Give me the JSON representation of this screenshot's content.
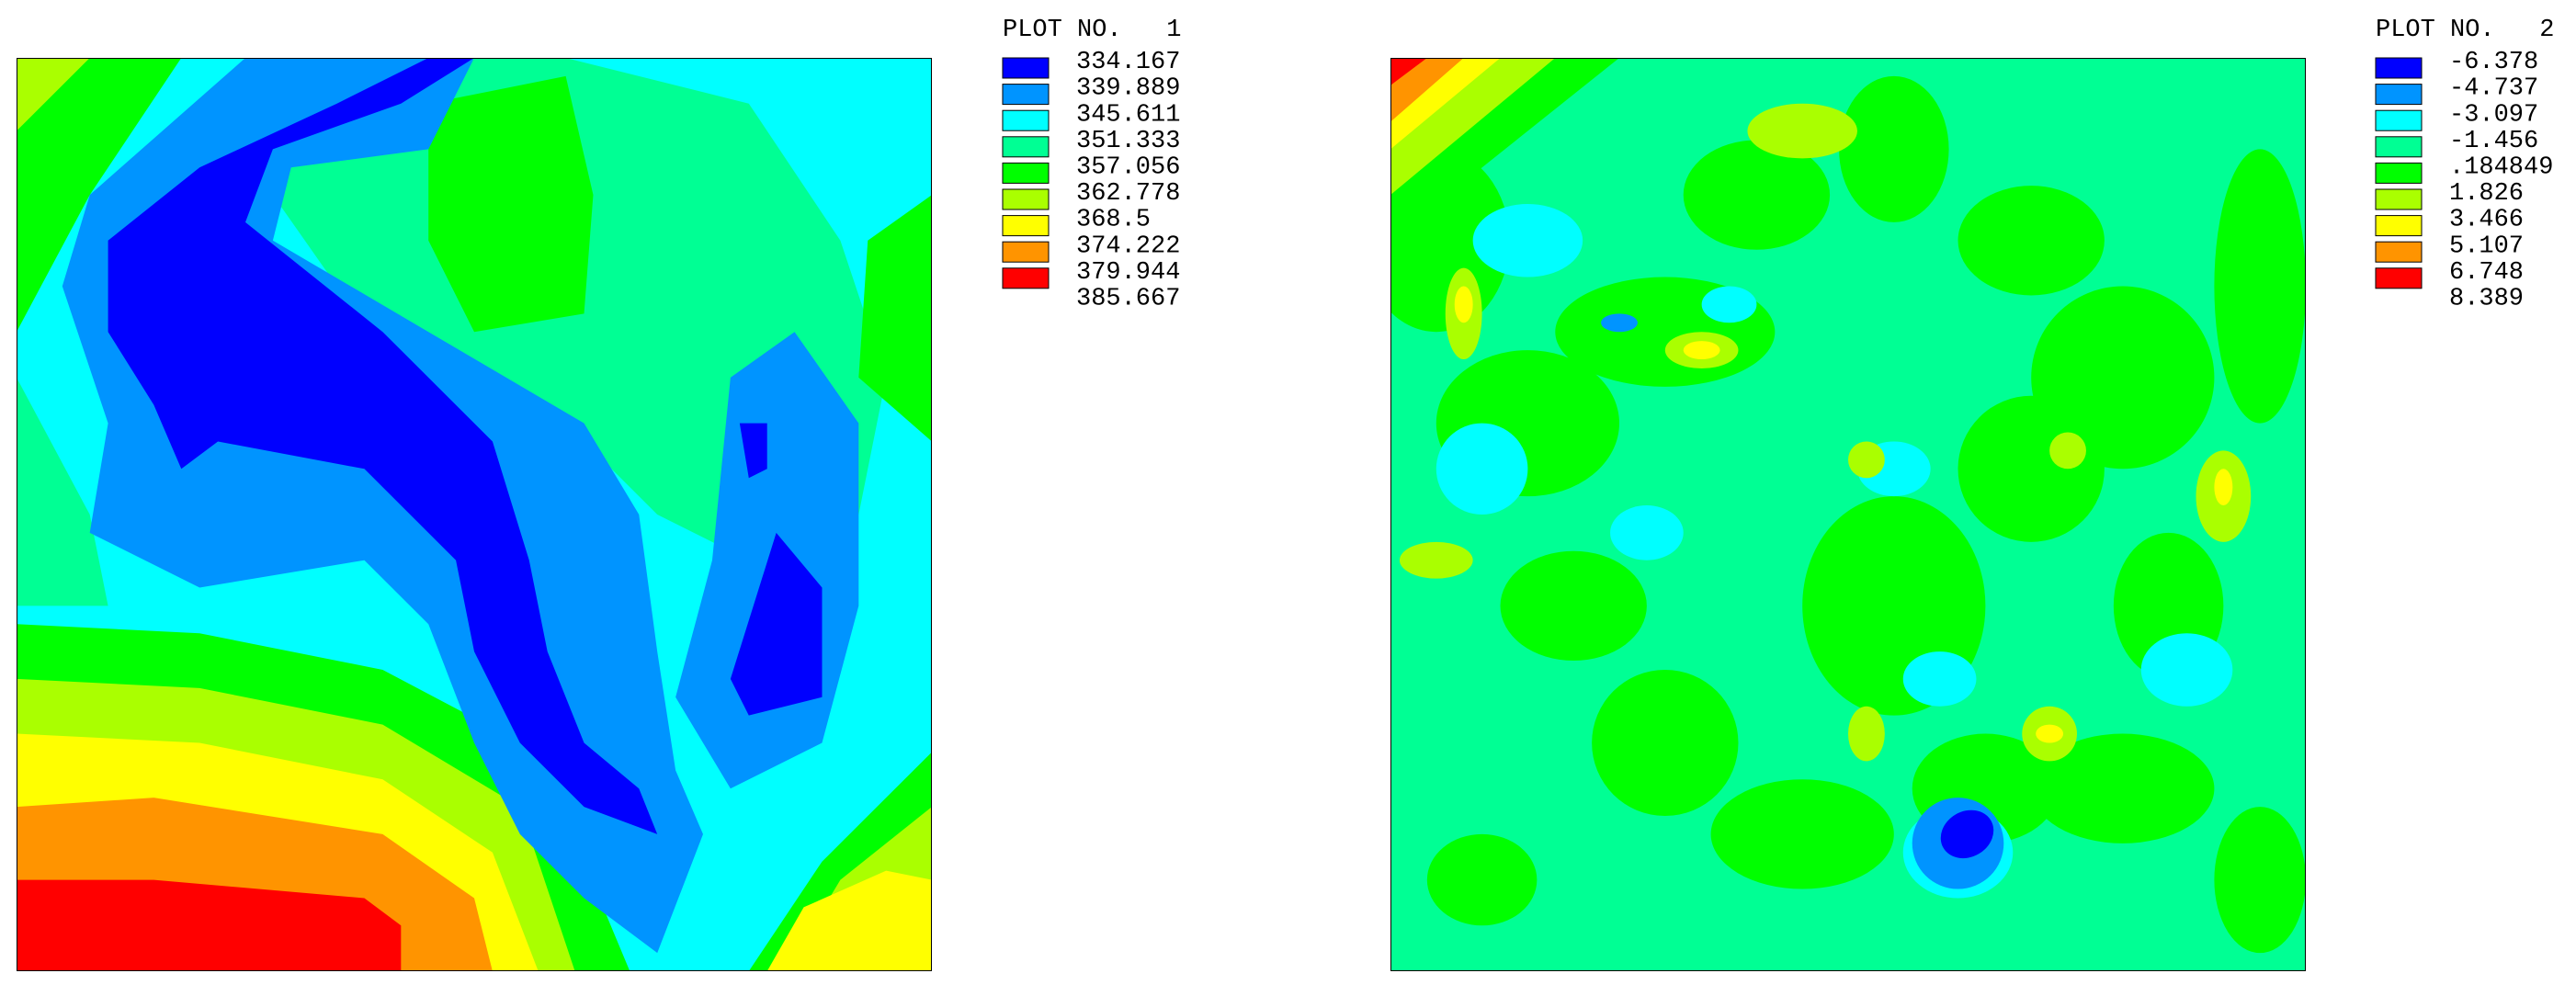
{
  "chart_data": [
    {
      "type": "contour",
      "title": "PLOT NO.   1",
      "levels": [
        334.167,
        339.889,
        345.611,
        351.333,
        357.056,
        362.778,
        368.5,
        374.222,
        379.944,
        385.667
      ],
      "colors": [
        "#0000ff",
        "#0094ff",
        "#00ffff",
        "#00ff94",
        "#00ff00",
        "#aaff00",
        "#ffff00",
        "#ff9400",
        "#ff0000"
      ]
    },
    {
      "type": "contour",
      "title": "PLOT NO.   2",
      "levels": [
        -6.378,
        -4.737,
        -3.097,
        -1.456,
        {
          "value": 0.184849,
          "label": ".184849"
        },
        1.826,
        3.466,
        5.107,
        6.748,
        8.389
      ],
      "colors": [
        "#0000ff",
        "#0094ff",
        "#00ffff",
        "#00ff94",
        "#00ff00",
        "#aaff00",
        "#ffff00",
        "#ff9400",
        "#ff0000"
      ]
    }
  ]
}
